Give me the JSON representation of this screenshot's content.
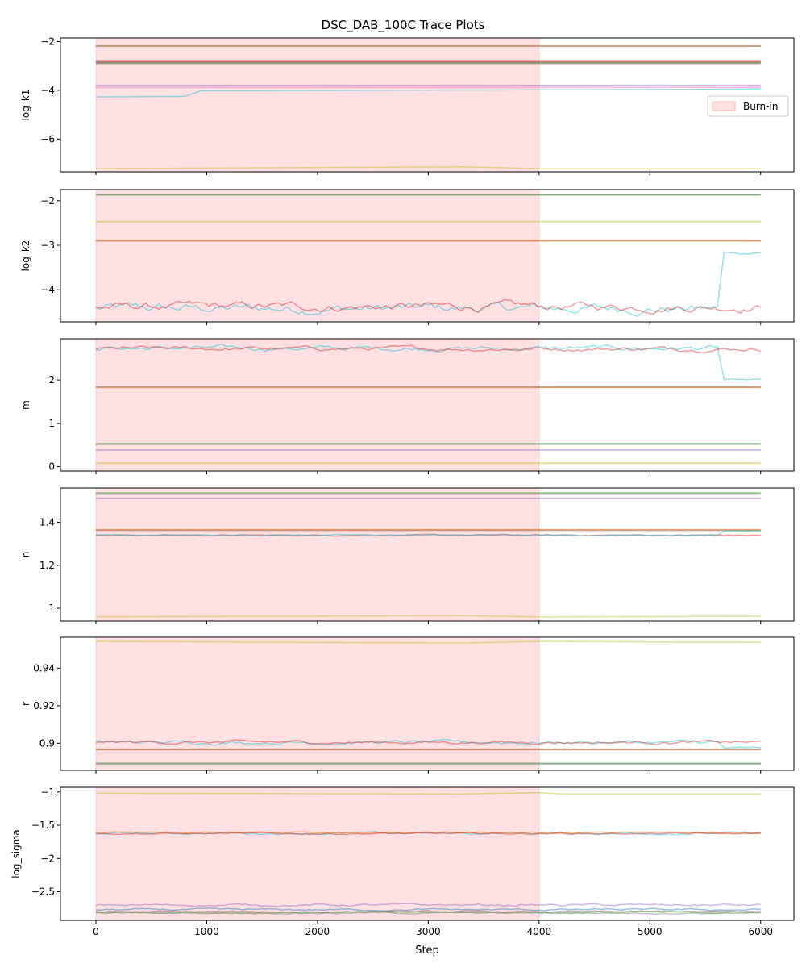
{
  "title": "DSC_DAB_100C Trace Plots",
  "xlabel": "Step",
  "legend_label": "Burn-in",
  "colors": {
    "burnin_fill": "#ffb3b8",
    "chains": [
      "#1f77b4",
      "#ff7f0e",
      "#2ca02c",
      "#d62728",
      "#9467bd",
      "#8c564b",
      "#e377c2",
      "#7f7f7f",
      "#bcbd22",
      "#17becf"
    ]
  },
  "chart_data": [
    {
      "type": "line",
      "ylabel": "log_k1",
      "xlim": [
        -320,
        6300
      ],
      "ylim": [
        -7.35,
        -1.85
      ],
      "x_ticks": [
        0,
        1000,
        2000,
        3000,
        4000,
        5000,
        6000
      ],
      "y_ticks": [
        -6,
        -4,
        -2
      ],
      "burnin": [
        0,
        4000
      ],
      "legend": "right",
      "series": [
        {
          "chain": 0,
          "style": "flat",
          "value": -2.18
        },
        {
          "chain": 1,
          "style": "flat",
          "value": -2.17
        },
        {
          "chain": 2,
          "style": "flat",
          "value": -2.87
        },
        {
          "chain": 3,
          "style": "flat",
          "value": -2.82
        },
        {
          "chain": 5,
          "style": "flat",
          "value": -2.85
        },
        {
          "chain": 7,
          "style": "flat",
          "value": -2.9
        },
        {
          "chain": 6,
          "style": "flat",
          "value": -3.88
        },
        {
          "chain": 4,
          "style": "flat",
          "value": -3.8
        },
        {
          "chain": 9,
          "style": "steps",
          "points": [
            [
              0,
              -4.27
            ],
            [
              800,
              -4.25
            ],
            [
              950,
              -4.02
            ],
            [
              6000,
              -3.95
            ]
          ]
        },
        {
          "chain": 8,
          "style": "steps",
          "points": [
            [
              0,
              -7.22
            ],
            [
              3300,
              -7.14
            ],
            [
              4000,
              -7.22
            ],
            [
              6000,
              -7.22
            ]
          ]
        }
      ]
    },
    {
      "type": "line",
      "ylabel": "log_k2",
      "xlim": [
        -320,
        6300
      ],
      "ylim": [
        -4.72,
        -1.75
      ],
      "x_ticks": [
        0,
        1000,
        2000,
        3000,
        4000,
        5000,
        6000
      ],
      "y_ticks": [
        -4,
        -3,
        -2
      ],
      "burnin": [
        0,
        4000
      ],
      "series": [
        {
          "chain": 7,
          "style": "flat",
          "value": -1.86
        },
        {
          "chain": 2,
          "style": "flat",
          "value": -1.87
        },
        {
          "chain": 8,
          "style": "flat",
          "value": -2.47
        },
        {
          "chain": 1,
          "style": "flat",
          "value": -2.89
        },
        {
          "chain": 5,
          "style": "flat",
          "value": -2.9
        },
        {
          "chain": 9,
          "style": "noisy",
          "base": -4.42,
          "amp": 0.08,
          "jump_at": 5620,
          "jump_to": -3.17
        },
        {
          "chain": 3,
          "style": "noisy",
          "base": -4.38,
          "amp": 0.07
        }
      ]
    },
    {
      "type": "line",
      "ylabel": "m",
      "xlim": [
        -320,
        6300
      ],
      "ylim": [
        -0.1,
        2.95
      ],
      "x_ticks": [
        0,
        1000,
        2000,
        3000,
        4000,
        5000,
        6000
      ],
      "y_ticks": [
        0,
        1,
        2
      ],
      "burnin": [
        0,
        4000
      ],
      "series": [
        {
          "chain": 9,
          "style": "noisy",
          "base": 2.73,
          "amp": 0.04,
          "jump_at": 5620,
          "jump_to": 2.0
        },
        {
          "chain": 3,
          "style": "noisy",
          "base": 2.72,
          "amp": 0.035
        },
        {
          "chain": 1,
          "style": "flat",
          "value": 1.83
        },
        {
          "chain": 5,
          "style": "flat",
          "value": 1.84
        },
        {
          "chain": 2,
          "style": "flat",
          "value": 0.53
        },
        {
          "chain": 7,
          "style": "flat",
          "value": 0.52
        },
        {
          "chain": 4,
          "style": "flat",
          "value": 0.39
        },
        {
          "chain": 8,
          "style": "flat",
          "value": 0.08
        }
      ]
    },
    {
      "type": "line",
      "ylabel": "n",
      "xlim": [
        -320,
        6300
      ],
      "ylim": [
        0.94,
        1.56
      ],
      "x_ticks": [
        0,
        1000,
        2000,
        3000,
        4000,
        5000,
        6000
      ],
      "y_ticks": [
        1.0,
        1.2,
        1.4
      ],
      "burnin": [
        0,
        4000
      ],
      "series": [
        {
          "chain": 2,
          "style": "flat",
          "value": 1.537
        },
        {
          "chain": 7,
          "style": "flat",
          "value": 1.532
        },
        {
          "chain": 4,
          "style": "flat",
          "value": 1.512
        },
        {
          "chain": 1,
          "style": "flat",
          "value": 1.366
        },
        {
          "chain": 5,
          "style": "flat",
          "value": 1.363
        },
        {
          "chain": 3,
          "style": "noisy",
          "base": 1.34,
          "amp": 0.002
        },
        {
          "chain": 9,
          "style": "noisy",
          "base": 1.341,
          "amp": 0.002,
          "jump_at": 5620,
          "jump_to": 1.36
        },
        {
          "chain": 8,
          "style": "steps",
          "points": [
            [
              0,
              0.96
            ],
            [
              3300,
              0.965
            ],
            [
              4000,
              0.96
            ],
            [
              6000,
              0.962
            ]
          ]
        }
      ]
    },
    {
      "type": "line",
      "ylabel": "r",
      "xlim": [
        -320,
        6300
      ],
      "ylim": [
        0.8855,
        0.9565
      ],
      "x_ticks": [
        0,
        1000,
        2000,
        3000,
        4000,
        5000,
        6000
      ],
      "y_ticks": [
        0.9,
        0.92,
        0.94
      ],
      "burnin": [
        0,
        4000
      ],
      "series": [
        {
          "chain": 8,
          "style": "steps",
          "points": [
            [
              0,
              0.9543
            ],
            [
              3300,
              0.9535
            ],
            [
              4000,
              0.9543
            ],
            [
              6000,
              0.9538
            ]
          ]
        },
        {
          "chain": 9,
          "style": "noisy",
          "base": 0.9005,
          "amp": 0.0007,
          "jump_at": 5620,
          "jump_to": 0.8975
        },
        {
          "chain": 3,
          "style": "noisy",
          "base": 0.9005,
          "amp": 0.0006
        },
        {
          "chain": 1,
          "style": "flat",
          "value": 0.8968
        },
        {
          "chain": 5,
          "style": "flat",
          "value": 0.8966
        },
        {
          "chain": 2,
          "style": "flat",
          "value": 0.8892
        },
        {
          "chain": 7,
          "style": "flat",
          "value": 0.889
        }
      ]
    },
    {
      "type": "line",
      "ylabel": "log_sigma",
      "xlim": [
        -320,
        6300
      ],
      "ylim": [
        -2.93,
        -0.93
      ],
      "x_ticks": [
        0,
        1000,
        2000,
        3000,
        4000,
        5000,
        6000
      ],
      "y_ticks": [
        -2.5,
        -2.0,
        -1.5,
        -1.0
      ],
      "burnin": [
        0,
        4000
      ],
      "series": [
        {
          "chain": 8,
          "style": "steps",
          "points": [
            [
              0,
              -1.02
            ],
            [
              3300,
              -1.03
            ],
            [
              4000,
              -1.01
            ],
            [
              4200,
              -1.03
            ],
            [
              6000,
              -1.03
            ]
          ]
        },
        {
          "chain": 9,
          "style": "noisy",
          "base": -1.62,
          "amp": 0.012
        },
        {
          "chain": 1,
          "style": "noisy",
          "base": -1.61,
          "amp": 0.008
        },
        {
          "chain": 3,
          "style": "noisy",
          "base": -1.625,
          "amp": 0.008
        },
        {
          "chain": 4,
          "style": "noisy",
          "base": -2.7,
          "amp": 0.012
        },
        {
          "chain": 0,
          "style": "noisy",
          "base": -2.77,
          "amp": 0.01
        },
        {
          "chain": 5,
          "style": "noisy",
          "base": -2.8,
          "amp": 0.008
        },
        {
          "chain": 2,
          "style": "noisy",
          "base": -2.81,
          "amp": 0.008
        },
        {
          "chain": 7,
          "style": "noisy",
          "base": -2.82,
          "amp": 0.008
        }
      ]
    }
  ]
}
